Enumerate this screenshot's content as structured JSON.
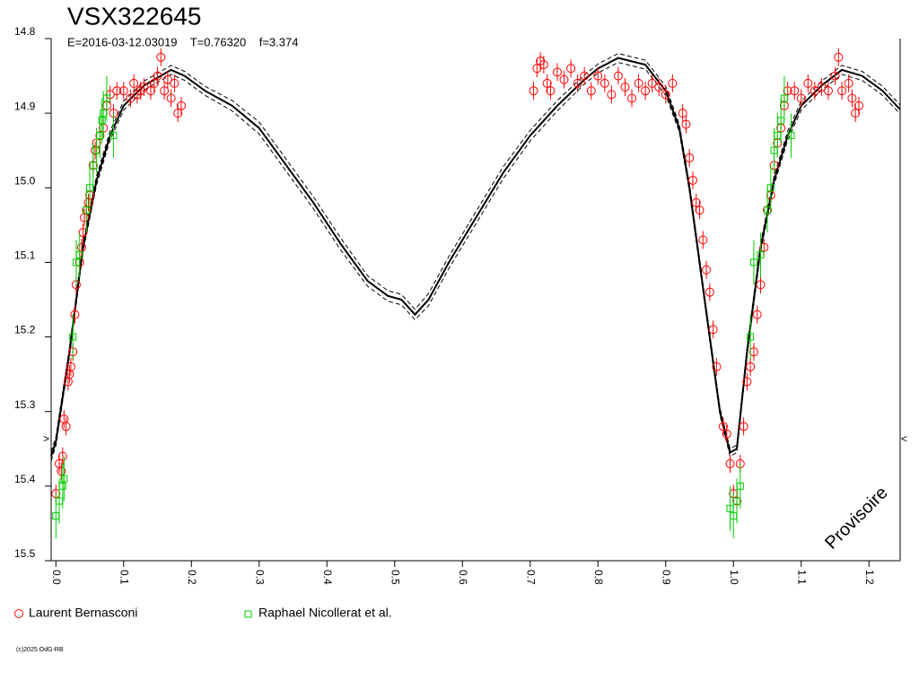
{
  "chart_data": {
    "type": "scatter",
    "title": "VSX322645",
    "subtitle": "E=2016-03-12.03019    T=0.76320    f=3.374",
    "annotations": [
      ">",
      "<",
      "Provisoire"
    ],
    "footer": "(c)2025 OdG-RB",
    "xlim": [
      -0.007,
      1.246
    ],
    "ylim": [
      14.8,
      15.5
    ],
    "y_inverted": true,
    "xticks": [
      {
        "value": 0,
        "label": "0.0"
      },
      0.1,
      0.2,
      0.3,
      0.4,
      0.5,
      0.6,
      0.7,
      0.8,
      0.9,
      {
        "value": 1,
        "label": "1.0"
      },
      1.1,
      1.2
    ],
    "yticks": [
      14.8,
      14.9,
      {
        "value": 15,
        "label": "15.0"
      },
      15.1,
      15.2,
      15.3,
      15.4,
      15.5
    ],
    "series": [
      {
        "name": "Laurent Bernasconi",
        "color": "#ff0000",
        "marker": "circle",
        "error": 0.012,
        "x": [
          0.0,
          0.005,
          0.008,
          0.01,
          0.012,
          0.015,
          0.018,
          0.02,
          0.022,
          0.025,
          0.028,
          0.03,
          0.035,
          0.038,
          0.04,
          0.042,
          0.045,
          0.048,
          0.05,
          0.055,
          0.058,
          0.06,
          0.065,
          0.07,
          0.075,
          0.08,
          0.085,
          0.09,
          0.1,
          0.11,
          0.115,
          0.12,
          0.125,
          0.13,
          0.14,
          0.145,
          0.15,
          0.155,
          0.16,
          0.165,
          0.17,
          0.175,
          0.18,
          0.185,
          0.705,
          0.71,
          0.715,
          0.72,
          0.725,
          0.73,
          0.74,
          0.75,
          0.76,
          0.77,
          0.78,
          0.79,
          0.8,
          0.81,
          0.82,
          0.83,
          0.84,
          0.85,
          0.86,
          0.87,
          0.88,
          0.89,
          0.9,
          0.91,
          0.925,
          0.93,
          0.935,
          0.94,
          0.945,
          0.95,
          0.955,
          0.96,
          0.965,
          0.97,
          0.975,
          0.985,
          0.99,
          0.995,
          1.0,
          1.005,
          1.01,
          1.015,
          1.02,
          1.025,
          1.03,
          1.035,
          1.04,
          1.045,
          1.05,
          1.055,
          1.06,
          1.065,
          1.07,
          1.075,
          1.08,
          1.09,
          1.1,
          1.11,
          1.12,
          1.13,
          1.14,
          1.15,
          1.155,
          1.16,
          1.17,
          1.175,
          1.18,
          1.185
        ],
        "values": [
          15.41,
          15.37,
          15.38,
          15.36,
          15.31,
          15.32,
          15.26,
          15.25,
          15.24,
          15.22,
          15.17,
          15.13,
          15.1,
          15.08,
          15.06,
          15.04,
          15.03,
          15.02,
          15.01,
          14.97,
          14.95,
          14.94,
          14.93,
          14.92,
          14.89,
          14.875,
          14.9,
          14.87,
          14.87,
          14.88,
          14.86,
          14.875,
          14.87,
          14.865,
          14.87,
          14.86,
          14.85,
          14.825,
          14.87,
          14.855,
          14.88,
          14.86,
          14.9,
          14.89,
          14.87,
          14.84,
          14.83,
          14.835,
          14.86,
          14.87,
          14.845,
          14.855,
          14.84,
          14.86,
          14.85,
          14.87,
          14.85,
          14.86,
          14.875,
          14.85,
          14.865,
          14.88,
          14.86,
          14.87,
          14.86,
          14.865,
          14.875,
          14.86,
          14.9,
          14.915,
          14.96,
          14.99,
          15.02,
          15.03,
          15.07,
          15.11,
          15.14,
          15.19,
          15.24,
          15.32,
          15.33,
          15.37,
          15.41,
          15.42,
          15.37,
          15.32,
          15.26,
          15.24,
          15.22,
          15.17,
          15.13,
          15.08,
          15.03,
          15.01,
          14.97,
          14.94,
          14.92,
          14.89,
          14.87,
          14.87,
          14.88,
          14.86,
          14.87,
          14.865,
          14.87,
          14.85,
          14.825,
          14.87,
          14.86,
          14.88,
          14.9,
          14.89
        ]
      },
      {
        "name": "Raphael Nicollerat et al.",
        "color": "#00cc00",
        "marker": "square",
        "error": 0.03,
        "x": [
          0.0,
          0.005,
          0.01,
          0.012,
          0.025,
          0.03,
          0.035,
          0.045,
          0.05,
          0.055,
          0.06,
          0.065,
          0.068,
          0.07,
          0.075,
          0.085,
          0.995,
          1.0,
          1.005,
          1.01,
          1.025,
          1.03,
          1.04,
          1.05,
          1.055,
          1.06,
          1.065,
          1.07,
          1.075,
          1.085
        ],
        "values": [
          15.44,
          15.42,
          15.4,
          15.39,
          15.2,
          15.1,
          15.09,
          15.03,
          15.0,
          14.97,
          14.95,
          14.93,
          14.91,
          14.9,
          14.88,
          14.93,
          15.43,
          15.44,
          15.42,
          15.4,
          15.2,
          15.1,
          15.09,
          15.03,
          15.0,
          14.95,
          14.93,
          14.91,
          14.88,
          14.93
        ]
      }
    ],
    "model_lines": [
      {
        "color": "#000000",
        "dashed": false,
        "x": [
          -0.007,
          0.0,
          0.02,
          0.04,
          0.06,
          0.08,
          0.1,
          0.13,
          0.17,
          0.19,
          0.22,
          0.26,
          0.3,
          0.34,
          0.38,
          0.42,
          0.46,
          0.49,
          0.51,
          0.53,
          0.55,
          0.58,
          0.62,
          0.66,
          0.7,
          0.74,
          0.78,
          0.8,
          0.83,
          0.87,
          0.9,
          0.92,
          0.935,
          0.95,
          0.965,
          0.98,
          0.995,
          1.005,
          1.02,
          1.04,
          1.06,
          1.08,
          1.1,
          1.13,
          1.16,
          1.19,
          1.22,
          1.246
        ],
        "values": [
          15.36,
          15.34,
          15.22,
          15.08,
          14.99,
          14.93,
          14.89,
          14.863,
          14.842,
          14.85,
          14.87,
          14.89,
          14.92,
          14.97,
          15.02,
          15.075,
          15.125,
          15.145,
          15.15,
          15.17,
          15.15,
          15.1,
          15.04,
          14.98,
          14.93,
          14.89,
          14.855,
          14.84,
          14.826,
          14.835,
          14.87,
          14.92,
          15.0,
          15.1,
          15.2,
          15.3,
          15.355,
          15.35,
          15.22,
          15.08,
          14.99,
          14.93,
          14.89,
          14.863,
          14.842,
          14.85,
          14.87,
          14.895
        ]
      },
      {
        "color": "#000000",
        "dashed": true,
        "x": [
          -0.007,
          0.0,
          0.02,
          0.04,
          0.06,
          0.08,
          0.1,
          0.13,
          0.17,
          0.19,
          0.22,
          0.26,
          0.3,
          0.34,
          0.38,
          0.42,
          0.46,
          0.49,
          0.51,
          0.53,
          0.55,
          0.58,
          0.62,
          0.66,
          0.7,
          0.74,
          0.78,
          0.8,
          0.83,
          0.87,
          0.9,
          0.92,
          0.935,
          0.95,
          0.965,
          0.98,
          0.995,
          1.005,
          1.02,
          1.04,
          1.06,
          1.08,
          1.1,
          1.13,
          1.16,
          1.19,
          1.22,
          1.246
        ],
        "values": [
          15.354,
          15.334,
          15.214,
          15.074,
          14.984,
          14.924,
          14.884,
          14.857,
          14.836,
          14.844,
          14.864,
          14.883,
          14.912,
          14.962,
          15.012,
          15.067,
          15.118,
          15.138,
          15.143,
          15.163,
          15.142,
          15.092,
          15.032,
          14.972,
          14.923,
          14.883,
          14.849,
          14.834,
          14.82,
          14.829,
          14.864,
          14.915,
          14.995,
          15.095,
          15.195,
          15.295,
          15.35,
          15.345,
          15.214,
          15.074,
          14.984,
          14.924,
          14.884,
          14.857,
          14.836,
          14.844,
          14.864,
          14.889
        ]
      },
      {
        "color": "#000000",
        "dashed": true,
        "x": [
          -0.007,
          0.0,
          0.02,
          0.04,
          0.06,
          0.08,
          0.1,
          0.13,
          0.17,
          0.19,
          0.22,
          0.26,
          0.3,
          0.34,
          0.38,
          0.42,
          0.46,
          0.49,
          0.51,
          0.53,
          0.55,
          0.58,
          0.62,
          0.66,
          0.7,
          0.74,
          0.78,
          0.8,
          0.83,
          0.87,
          0.9,
          0.92,
          0.935,
          0.95,
          0.965,
          0.98,
          0.995,
          1.005,
          1.02,
          1.04,
          1.06,
          1.08,
          1.1,
          1.13,
          1.16,
          1.19,
          1.22,
          1.246
        ],
        "values": [
          15.366,
          15.346,
          15.226,
          15.086,
          14.996,
          14.936,
          14.896,
          14.869,
          14.848,
          14.856,
          14.876,
          14.897,
          14.928,
          14.978,
          15.028,
          15.083,
          15.132,
          15.152,
          15.157,
          15.177,
          15.158,
          15.108,
          15.048,
          14.988,
          14.937,
          14.897,
          14.861,
          14.846,
          14.832,
          14.841,
          14.876,
          14.925,
          15.005,
          15.105,
          15.205,
          15.305,
          15.36,
          15.355,
          15.226,
          15.086,
          14.996,
          14.936,
          14.896,
          14.869,
          14.848,
          14.856,
          14.876,
          14.901
        ]
      }
    ]
  }
}
